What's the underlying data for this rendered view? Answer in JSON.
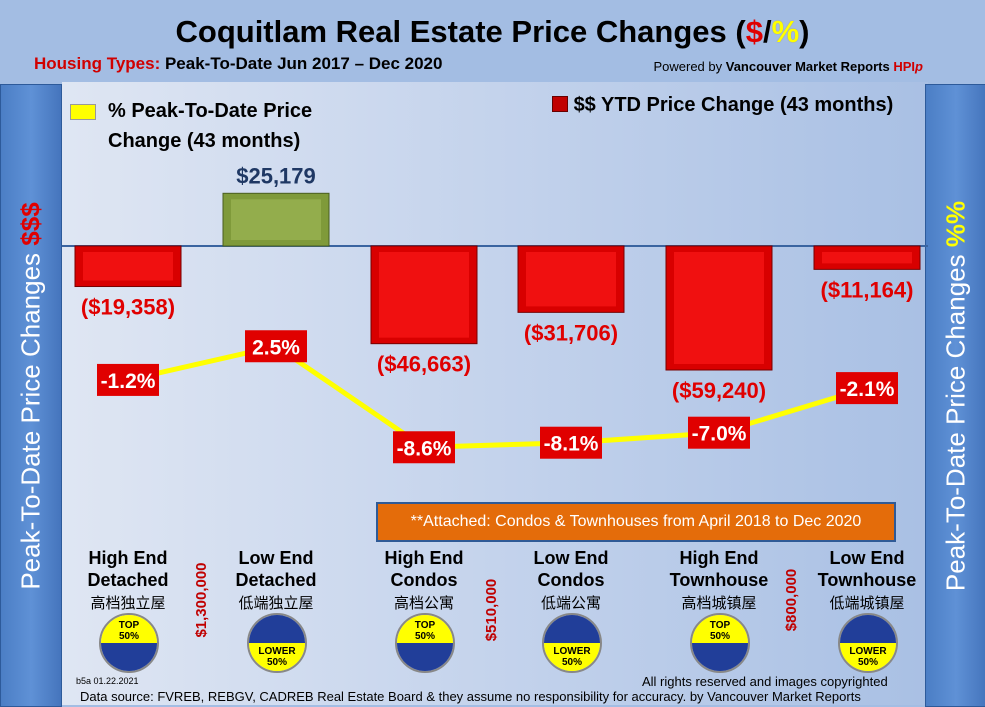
{
  "header": {
    "title_main": "Coquitlam Real Estate Price Changes (",
    "title_dollar": "$",
    "title_slash": "/",
    "title_pct": "%",
    "title_close": ")",
    "subtitle_label": "Housing Types:",
    "subtitle_text": " Peak-To-Date Jun 2017 – Dec 2020",
    "powered_prefix": "Powered by ",
    "powered_brand": "Vancouver Market Reports",
    "powered_hpi": " HPI",
    "powered_p": "p"
  },
  "side_left": {
    "text": "Peak-To-Date Price Changes ",
    "accent": "$$$"
  },
  "side_right": {
    "text": "Peak-To-Date  Price  Changes ",
    "accent": "%%"
  },
  "colors": {
    "bar_negative": "#e00000",
    "bar_positive": "#7f9a3a",
    "line": "#ffff00",
    "label_box": "#e00000",
    "note_box": "#e46c0a"
  },
  "chart_data": {
    "type": "bar+line",
    "categories": [
      "High End Detached",
      "Low End Detached",
      "High End Condos",
      "Low End Condos",
      "High End Townhouse",
      "Low End Townhouse"
    ],
    "series": [
      {
        "name": "$$ YTD Price Change (43 months)",
        "type": "bar",
        "values": [
          -19358,
          25179,
          -46663,
          -31706,
          -59240,
          -11164
        ],
        "labels": [
          "($19,358)",
          "$25,179",
          "($46,663)",
          "($31,706)",
          "($59,240)",
          "($11,164)"
        ]
      },
      {
        "name": "% Peak-To-Date Price Change (43 months)",
        "type": "line",
        "values": [
          -1.2,
          2.5,
          -8.6,
          -8.1,
          -7.0,
          -2.1
        ],
        "labels": [
          "-1.2%",
          "2.5%",
          "-8.6%",
          "-8.1%",
          "-7.0%",
          "-2.1%"
        ]
      }
    ],
    "legend": {
      "line_label_1": "% Peak-To-Date Price",
      "line_label_2": "Change (43 months)",
      "bar_label": "$$ YTD Price Change (43 months)"
    }
  },
  "note": "**Attached: Condos & Townhouses from April 2018 to Dec 2020",
  "categories": [
    {
      "line1": "High End",
      "line2": "Detached",
      "cn": "高档独立屋",
      "badge1": "TOP",
      "badge2": "50%",
      "top": true
    },
    {
      "line1": "Low End",
      "line2": "Detached",
      "cn": "低端独立屋",
      "badge1": "LOWER",
      "badge2": "50%",
      "top": false
    },
    {
      "line1": "High End",
      "line2": "Condos",
      "cn": "高档公寓",
      "badge1": "TOP",
      "badge2": "50%",
      "top": true
    },
    {
      "line1": "Low End",
      "line2": "Condos",
      "cn": "低端公寓",
      "badge1": "LOWER",
      "badge2": "50%",
      "top": false
    },
    {
      "line1": "High End",
      "line2": "Townhouse",
      "cn": "高档城镇屋",
      "badge1": "TOP",
      "badge2": "50%",
      "top": true
    },
    {
      "line1": "Low End",
      "line2": "Townhouse",
      "cn": "低端城镇屋",
      "badge1": "LOWER",
      "badge2": "50%",
      "top": false
    }
  ],
  "thresholds": [
    "$1,300,000",
    "$510,000",
    "$800,000"
  ],
  "footer": {
    "version": "b5a 01.22.2021",
    "rights": "All rights reserved and  images copyrighted",
    "source": "Data source: FVREB, REBGV, CADREB Real Estate Board & they assume no responsibility for accuracy. by Vancouver Market Reports"
  }
}
